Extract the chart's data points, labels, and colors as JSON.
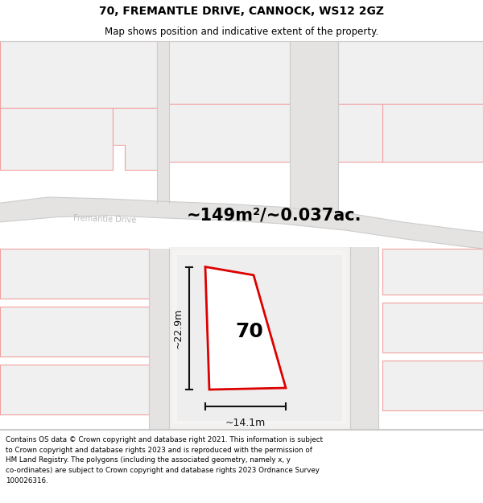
{
  "title_line1": "70, FREMANTLE DRIVE, CANNOCK, WS12 2GZ",
  "title_line2": "Map shows position and indicative extent of the property.",
  "area_label": "~149m²/~0.037ac.",
  "number_label": "70",
  "dim_height": "~22.9m",
  "dim_width": "~14.1m",
  "footer_text": "Contains OS data © Crown copyright and database right 2021. This information is subject to Crown copyright and database rights 2023 and is reproduced with the permission of HM Land Registry. The polygons (including the associated geometry, namely x, y co-ordinates) are subject to Crown copyright and database rights 2023 Ordnance Survey 100026316.",
  "bg_color": "#ffffff",
  "map_bg": "#f7f6f5",
  "road_fill": "#eeeeee",
  "block_fill": "#e8e8e8",
  "red_color": "#dd0000",
  "pink": "#f0a0a0",
  "gray_outline": "#cccccc",
  "dim_color": "#111111",
  "road_label_color": "#bbbbbb",
  "title_fontsize": 10,
  "subtitle_fontsize": 8.5,
  "area_fontsize": 15,
  "number_fontsize": 18,
  "dim_fontsize": 9,
  "footer_fontsize": 6.3
}
